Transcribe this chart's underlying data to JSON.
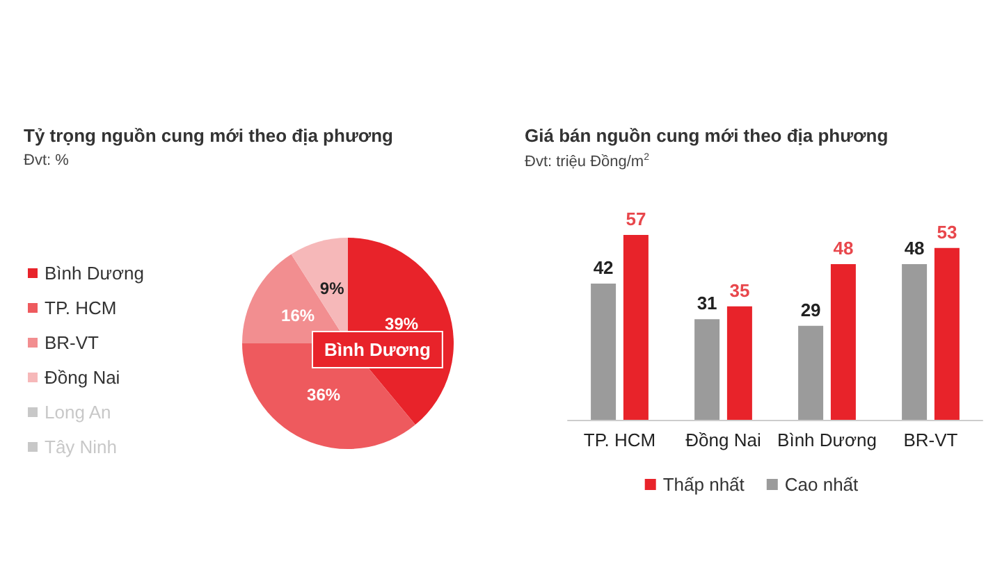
{
  "chart_data": [
    {
      "type": "pie",
      "title": "Tỷ trọng nguồn cung mới theo địa phương",
      "subtitle": "Đvt: %",
      "categories": [
        "Bình Dương",
        "TP. HCM",
        "BR-VT",
        "Đồng Nai",
        "Long An",
        "Tây Ninh"
      ],
      "values": [
        39,
        36,
        16,
        9,
        null,
        null
      ],
      "colors": [
        "#e8232a",
        "#ee5a5e",
        "#f28e90",
        "#f6b8b9",
        "#dcdcdc",
        "#e2e2e2"
      ],
      "value_labels": [
        "39%",
        "36%",
        "16%",
        "9%",
        null,
        null
      ],
      "legend": "left",
      "annotations": [
        "Bình Dương"
      ]
    },
    {
      "type": "bar",
      "title": "Giá bán nguồn cung mới theo địa phương",
      "subtitle": "Đvt: triệu Đồng/m$^{2}$",
      "categories": [
        "TP. HCM",
        "Đồng Nai",
        "Bình Dương",
        "BR-VT"
      ],
      "series": [
        {
          "name": "Thấp nhất",
          "color": "#e8232a",
          "values": [
            57,
            35,
            48,
            53
          ]
        },
        {
          "name": "Cao nhất",
          "color": "#9b9b9b",
          "values": [
            42,
            31,
            29,
            48
          ]
        }
      ],
      "data_labels": true,
      "legend": "bottom"
    }
  ]
}
